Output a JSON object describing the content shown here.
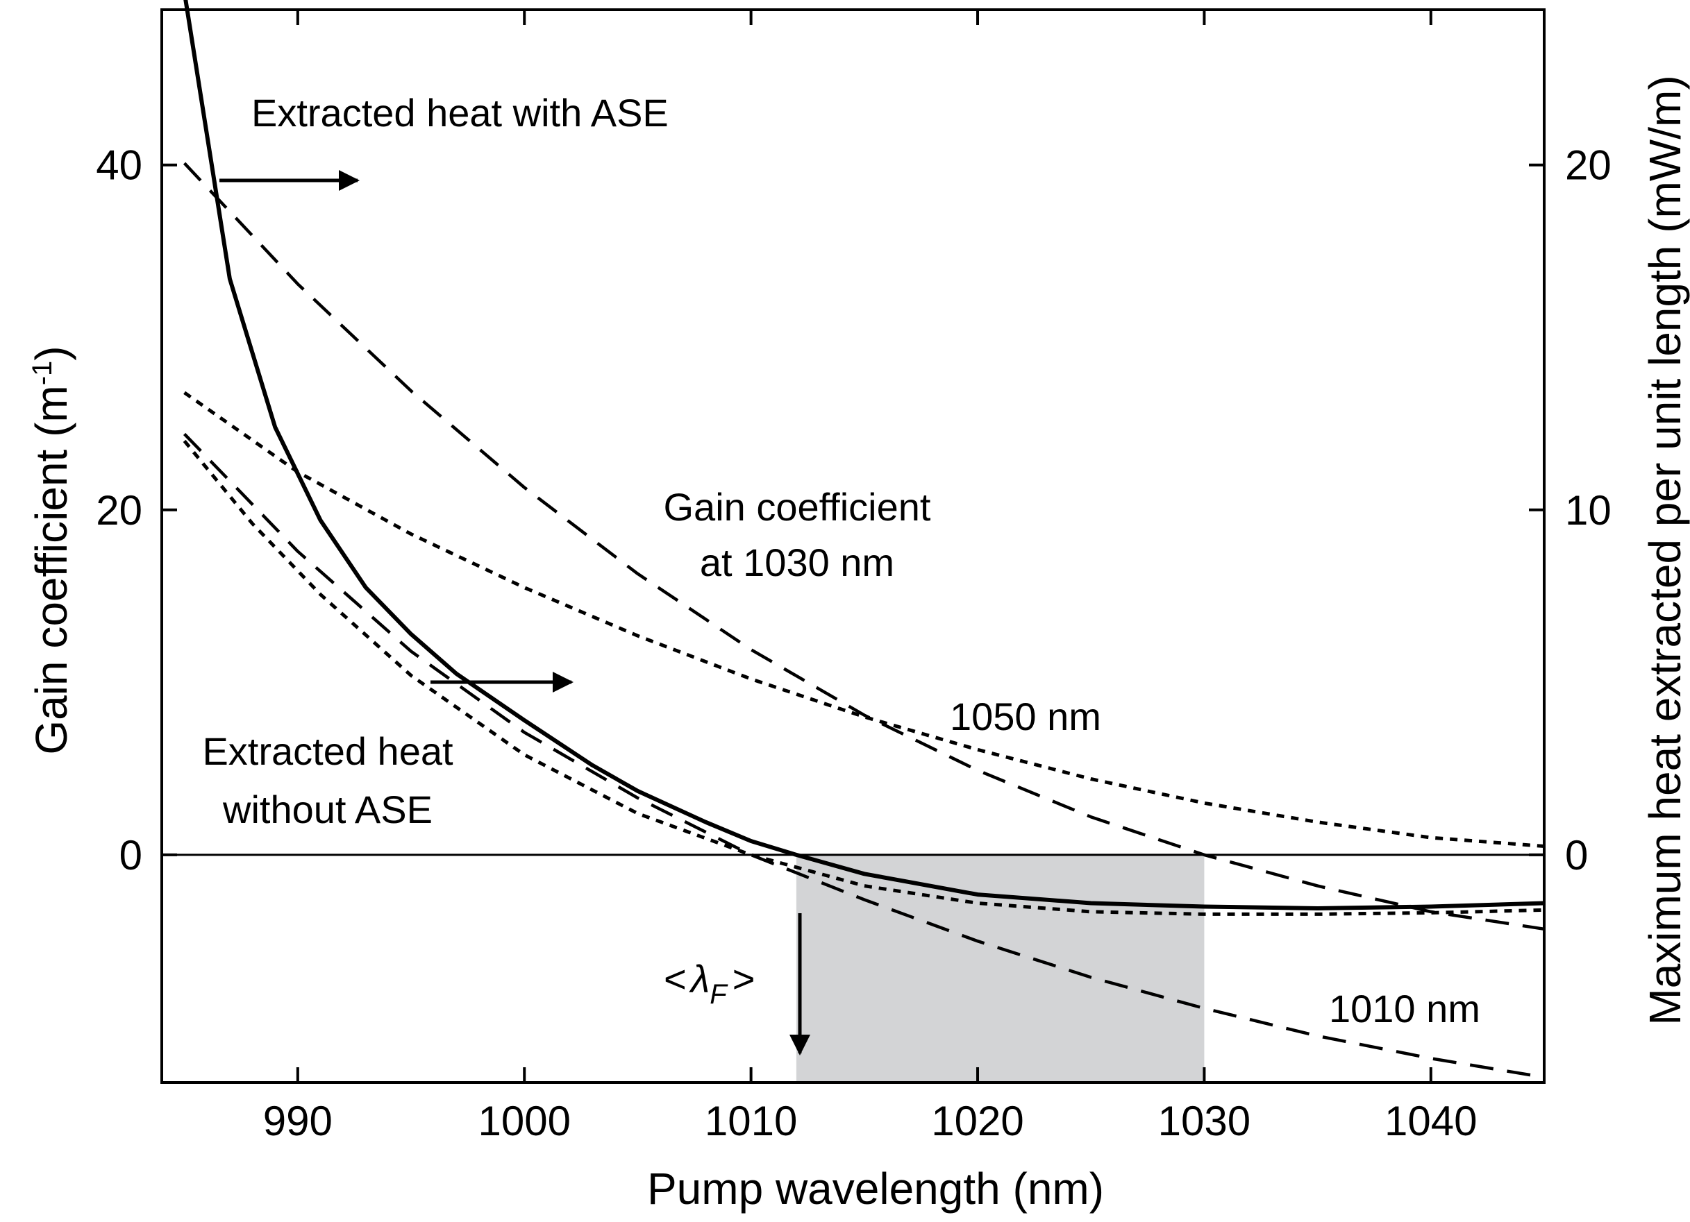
{
  "chart_data": {
    "type": "line",
    "xlabel": "Pump wavelength (nm)",
    "ylabel": "Gain coefficient (m",
    "ylabel_sup": "-1",
    "ylabel_close": ")",
    "y2label": "Maximum heat extracted per unit length (mW/m)",
    "xlim": [
      984,
      1045
    ],
    "ylim": [
      -13.2,
      49
    ],
    "y2lim": [
      -6.6,
      24.5
    ],
    "x_ticks": [
      990,
      1000,
      1010,
      1020,
      1030,
      1040
    ],
    "x_tick_labels": [
      "990",
      "1000",
      "1010",
      "1020",
      "1030",
      "1040"
    ],
    "y_ticks": [
      0,
      20,
      40
    ],
    "y_tick_labels": [
      "0",
      "20",
      "40"
    ],
    "y2_ticks": [
      0,
      10,
      20
    ],
    "y2_tick_labels": [
      "0",
      "10",
      "20"
    ],
    "zero_line": 0,
    "shaded_region": {
      "x": [
        1012,
        1030
      ]
    },
    "grid": false,
    "series": [
      {
        "axis": "right",
        "style": "solid",
        "x": [
          985,
          987,
          989,
          991,
          993,
          995,
          997,
          1000,
          1003,
          1005,
          1008,
          1010,
          1012,
          1015,
          1020,
          1025,
          1030,
          1035,
          1040,
          1045
        ],
        "y": [
          25,
          16.7,
          12.4,
          9.7,
          7.75,
          6.4,
          5.25,
          3.9,
          2.6,
          1.85,
          0.95,
          0.4,
          0.0,
          -0.55,
          -1.15,
          -1.4,
          -1.5,
          -1.55,
          -1.5,
          -1.4
        ]
      },
      {
        "axis": "right",
        "style": "dotted",
        "x": [
          985,
          988,
          991,
          995,
          1000,
          1005,
          1010,
          1015,
          1020,
          1025,
          1030,
          1035,
          1040,
          1045
        ],
        "y": [
          12.0,
          9.6,
          7.55,
          5.2,
          2.9,
          1.2,
          0.0,
          -0.9,
          -1.4,
          -1.65,
          -1.72,
          -1.72,
          -1.68,
          -1.6
        ]
      },
      {
        "axis": "left",
        "style": "dashed",
        "name": "Gain coefficient at 1030 nm",
        "x": [
          985,
          990,
          995,
          1000,
          1005,
          1010,
          1015,
          1020,
          1025,
          1030,
          1035,
          1040,
          1045
        ],
        "y": [
          40.1,
          33.1,
          26.9,
          21.3,
          16.3,
          11.9,
          8.1,
          4.9,
          2.2,
          0.0,
          -1.8,
          -3.3,
          -4.3
        ]
      },
      {
        "axis": "left",
        "style": "dotted",
        "name": "1050 nm",
        "x": [
          985,
          990,
          995,
          1000,
          1005,
          1010,
          1015,
          1020,
          1025,
          1030,
          1035,
          1040,
          1045
        ],
        "y": [
          26.8,
          22.2,
          18.6,
          15.5,
          12.7,
          10.2,
          8.0,
          6.1,
          4.4,
          3.0,
          1.9,
          1.0,
          0.5
        ]
      },
      {
        "axis": "left",
        "style": "dashed",
        "name": "1010 nm",
        "x": [
          985,
          990,
          995,
          1000,
          1005,
          1010,
          1015,
          1020,
          1025,
          1030,
          1035,
          1040,
          1045
        ],
        "y": [
          24.4,
          17.6,
          11.8,
          7.1,
          3.3,
          0.0,
          -2.6,
          -5.0,
          -7.1,
          -8.9,
          -10.5,
          -11.8,
          -12.9
        ]
      }
    ],
    "annotations": {
      "heat_with_ase": "Extracted heat with ASE",
      "heat_without_ase_1": "Extracted heat",
      "heat_without_ase_2": "without ASE",
      "gain_1030_1": "Gain coefficient",
      "gain_1030_2": "at 1030 nm",
      "label_1050": "1050 nm",
      "label_1010": "1010 nm",
      "lambda_open": "<",
      "lambda_symbol": "λ",
      "lambda_sub": "F",
      "lambda_close": ">"
    }
  }
}
